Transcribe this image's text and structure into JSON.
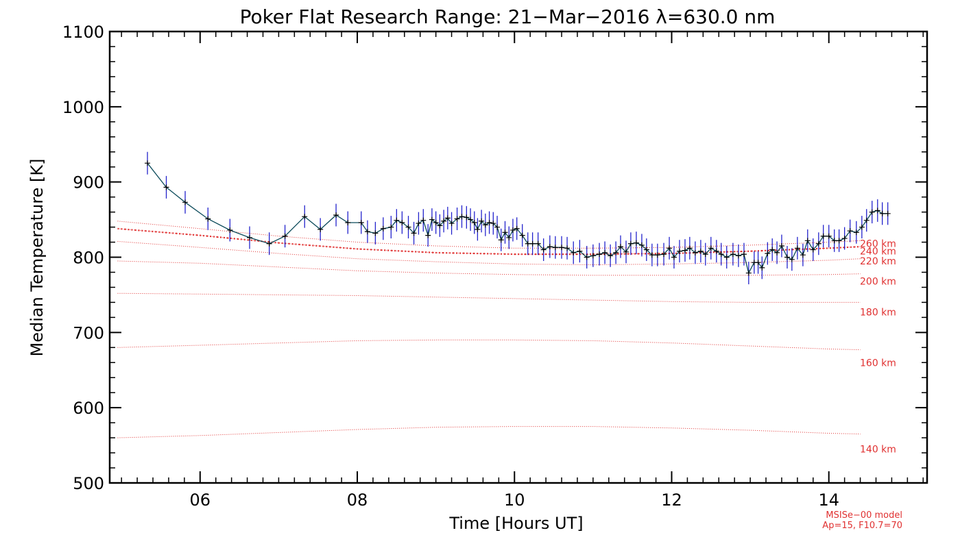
{
  "chart_data": {
    "type": "line",
    "title": "Poker Flat Research Range: 21−Mar−2016 λ=630.0 nm",
    "xlabel": "Time [Hours UT]",
    "ylabel": "Median Temperature [K]",
    "xlim": [
      4.85,
      15.25
    ],
    "ylim": [
      500,
      1100
    ],
    "x_ticks": [
      6,
      8,
      10,
      12,
      14
    ],
    "x_tick_labels": [
      "06",
      "08",
      "10",
      "12",
      "14"
    ],
    "y_ticks": [
      500,
      600,
      700,
      800,
      900,
      1000,
      1100
    ],
    "y_tick_labels": [
      "500",
      "600",
      "700",
      "800",
      "900",
      "1000",
      "1100"
    ],
    "grid": false,
    "colors": {
      "measured_line": "#0b4a5a",
      "error_bars": "#2222cc",
      "markers": "#000000",
      "model": "#e03030"
    },
    "series": [
      {
        "x": [
          5.33,
          5.57,
          5.81,
          6.1,
          6.38,
          6.63,
          6.88,
          7.08,
          7.33,
          7.53,
          7.73,
          7.88,
          8.05,
          8.13,
          8.23,
          8.33,
          8.43,
          8.5,
          8.57,
          8.65,
          8.72,
          8.78,
          8.84,
          8.9,
          8.95,
          9.0,
          9.05,
          9.1,
          9.15,
          9.2,
          9.27,
          9.33,
          9.39,
          9.44,
          9.49,
          9.53,
          9.58,
          9.63,
          9.68,
          9.73,
          9.78,
          9.83,
          9.88,
          9.93,
          9.98,
          10.03,
          10.1,
          10.17,
          10.23,
          10.3,
          10.37,
          10.45,
          10.52,
          10.6,
          10.67,
          10.75,
          10.83,
          10.92,
          11.0,
          11.08,
          11.15,
          11.22,
          11.29,
          11.35,
          11.42,
          11.48,
          11.55,
          11.62,
          11.68,
          11.75,
          11.82,
          11.9,
          11.97,
          12.03,
          12.1,
          12.17,
          12.23,
          12.3,
          12.37,
          12.43,
          12.5,
          12.57,
          12.63,
          12.7,
          12.78,
          12.85,
          12.92,
          12.98,
          13.05,
          13.1,
          13.15,
          13.22,
          13.28,
          13.34,
          13.4,
          13.47,
          13.53,
          13.6,
          13.67,
          13.73,
          13.8,
          13.87,
          13.93,
          14.0,
          14.07,
          14.13,
          14.2,
          14.27,
          14.35,
          14.42,
          14.48,
          14.55,
          14.62,
          14.68,
          14.75
        ],
        "values": [
          925,
          893,
          873,
          851,
          836,
          826,
          818,
          828,
          854,
          837,
          856,
          846,
          846,
          834,
          832,
          838,
          840,
          849,
          846,
          840,
          832,
          845,
          849,
          829,
          850,
          846,
          842,
          848,
          852,
          845,
          851,
          854,
          853,
          850,
          846,
          837,
          848,
          843,
          846,
          845,
          840,
          823,
          833,
          826,
          836,
          838,
          829,
          818,
          818,
          818,
          810,
          814,
          813,
          813,
          812,
          806,
          808,
          800,
          802,
          804,
          806,
          802,
          806,
          814,
          807,
          818,
          819,
          816,
          810,
          803,
          803,
          804,
          812,
          800,
          808,
          809,
          812,
          806,
          808,
          804,
          812,
          808,
          804,
          800,
          804,
          802,
          804,
          779,
          793,
          793,
          786,
          805,
          810,
          806,
          815,
          800,
          797,
          812,
          803,
          822,
          810,
          818,
          828,
          828,
          822,
          822,
          825,
          835,
          833,
          840,
          849,
          860,
          862,
          858,
          858
        ],
        "error": [
          15,
          15,
          15,
          15,
          15,
          15,
          15,
          15,
          15,
          15,
          15,
          15,
          15,
          15,
          15,
          15,
          15,
          15,
          15,
          15,
          15,
          15,
          15,
          15,
          15,
          15,
          15,
          15,
          15,
          15,
          15,
          15,
          15,
          15,
          15,
          15,
          15,
          15,
          15,
          15,
          15,
          15,
          15,
          15,
          15,
          15,
          15,
          15,
          15,
          15,
          15,
          15,
          15,
          15,
          15,
          15,
          15,
          15,
          15,
          15,
          15,
          15,
          15,
          15,
          15,
          15,
          15,
          15,
          15,
          15,
          15,
          15,
          15,
          15,
          15,
          15,
          15,
          15,
          15,
          15,
          15,
          15,
          15,
          15,
          15,
          15,
          15,
          15,
          15,
          15,
          15,
          15,
          15,
          15,
          15,
          15,
          15,
          15,
          15,
          15,
          15,
          15,
          15,
          15,
          15,
          15,
          15,
          15,
          15,
          15,
          15,
          15,
          15,
          15,
          15
        ]
      },
      {
        "x": [
          4.95,
          6.0,
          7.0,
          8.0,
          9.0,
          10.0,
          11.0,
          12.0,
          13.0,
          14.0,
          14.4
        ],
        "values": [
          838,
          829,
          819,
          811,
          806,
          804,
          804,
          805,
          808,
          812,
          814
        ]
      }
    ],
    "model_levels": [
      {
        "label": "140 km",
        "x": [
          4.95,
          6.0,
          7.0,
          8.0,
          9.0,
          10.0,
          11.0,
          12.0,
          13.0,
          14.0,
          14.4
        ],
        "values": [
          560,
          563,
          567,
          571,
          574,
          575,
          575,
          573,
          570,
          566,
          565
        ]
      },
      {
        "label": "160 km",
        "x": [
          4.95,
          6.0,
          7.0,
          8.0,
          9.0,
          10.0,
          11.0,
          12.0,
          13.0,
          14.0,
          14.4
        ],
        "values": [
          680,
          683,
          686,
          689,
          690,
          690,
          689,
          686,
          682,
          678,
          677
        ]
      },
      {
        "label": "180 km",
        "x": [
          4.95,
          6.0,
          7.0,
          8.0,
          9.0,
          10.0,
          11.0,
          12.0,
          13.0,
          14.0,
          14.4
        ],
        "values": [
          752,
          751,
          750,
          749,
          747,
          745,
          743,
          741,
          740,
          740,
          740
        ]
      },
      {
        "label": "200 km",
        "x": [
          4.95,
          6.0,
          7.0,
          8.0,
          9.0,
          10.0,
          11.0,
          12.0,
          13.0,
          14.0,
          14.4
        ],
        "values": [
          795,
          792,
          787,
          782,
          779,
          777,
          776,
          776,
          776,
          777,
          778
        ]
      },
      {
        "label": "220 km",
        "x": [
          4.95,
          6.0,
          7.0,
          8.0,
          9.0,
          10.0,
          11.0,
          12.0,
          13.0,
          14.0,
          14.4
        ],
        "values": [
          821,
          813,
          805,
          798,
          794,
          791,
          790,
          791,
          793,
          796,
          798
        ]
      },
      {
        "label": "240 km",
        "x": [
          4.95,
          6.0,
          7.0,
          8.0,
          9.0,
          10.0,
          11.0,
          12.0,
          13.0,
          14.0,
          14.4
        ],
        "values": [
          838,
          829,
          819,
          811,
          806,
          804,
          804,
          805,
          808,
          812,
          814
        ]
      },
      {
        "label": "260 km",
        "x": [
          4.95,
          6.0,
          7.0,
          8.0,
          9.0,
          10.0,
          11.0,
          12.0,
          13.0,
          14.0,
          14.4
        ],
        "values": [
          848,
          838,
          828,
          820,
          815,
          812,
          812,
          813,
          816,
          820,
          822
        ]
      }
    ],
    "model_label_values": [
      545,
      660,
      727,
      768,
      795,
      808,
      818
    ],
    "footnote": [
      "MSISe−00 model",
      "Ap=15, F10.7=70"
    ]
  }
}
